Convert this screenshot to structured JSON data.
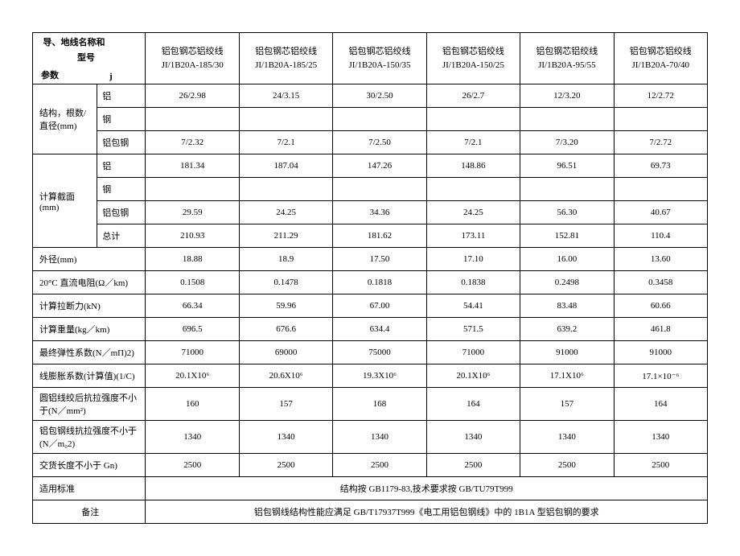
{
  "header": {
    "corner_top": "导、地线名称和",
    "corner_mid": "型号",
    "corner_bot": "参数",
    "corner_j": "j",
    "cols": [
      {
        "l1": "铝包钢芯铝绞线",
        "l2": "JI/1B20A-185/30"
      },
      {
        "l1": "铝包钢芯铝绞线",
        "l2": "JI/1B20A-185/25"
      },
      {
        "l1": "铝包钢芯铝绞线",
        "l2": "JI/1B20A-150/35"
      },
      {
        "l1": "铝包钢芯铝绞线",
        "l2": "JI/1B20A-150/25"
      },
      {
        "l1": "铝包钢芯铝绞线",
        "l2": "JI/1B20A-95/55"
      },
      {
        "l1": "铝包钢芯铝绞线",
        "l2": "JI/1B20A-70/40"
      }
    ]
  },
  "groups": {
    "g1": {
      "label": "结构，根数/直径(mm)",
      "rows": [
        {
          "sub": "铝",
          "v": [
            "26/2.98",
            "24/3.15",
            "30/2.50",
            "26/2.7",
            "12/3.20",
            "12/2.72"
          ]
        },
        {
          "sub": "钢",
          "v": [
            "",
            "",
            "",
            "",
            "",
            ""
          ]
        },
        {
          "sub": "铝包钢",
          "v": [
            "7/2.32",
            "7/2.1",
            "7/2.50",
            "7/2.1",
            "7/3.20",
            "7/2.72"
          ]
        }
      ]
    },
    "g2": {
      "label": "计算截面(mm)",
      "rows": [
        {
          "sub": "铝",
          "v": [
            "181.34",
            "187.04",
            "147.26",
            "148.86",
            "96.51",
            "69.73"
          ]
        },
        {
          "sub": "钢",
          "v": [
            "",
            "",
            "",
            "",
            "",
            ""
          ]
        },
        {
          "sub": "铝包钢",
          "v": [
            "29.59",
            "24.25",
            "34.36",
            "24.25",
            "56.30",
            "40.67"
          ]
        },
        {
          "sub": "总计",
          "v": [
            "210.93",
            "211.29",
            "181.62",
            "173.11",
            "152.81",
            "110.4"
          ]
        }
      ]
    }
  },
  "rows": [
    {
      "label": "外径(mm)",
      "v": [
        "18.88",
        "18.9",
        "17.50",
        "17.10",
        "16.00",
        "13.60"
      ]
    },
    {
      "label": "20°C 直流电阻(Ω／km)",
      "v": [
        "0.1508",
        "0.1478",
        "0.1818",
        "0.1838",
        "0.2498",
        "0.3458"
      ]
    },
    {
      "label": "计算拉断力(kN)",
      "v": [
        "66.34",
        "59.96",
        "67.00",
        "54.41",
        "83.48",
        "60.66"
      ]
    },
    {
      "label": "计算重量(kg／km)",
      "v": [
        "696.5",
        "676.6",
        "634.4",
        "571.5",
        "639.2",
        "461.8"
      ]
    },
    {
      "label": "最终弹性系数(N／mΠ)2)",
      "v": [
        "71000",
        "69000",
        "75000",
        "71000",
        "91000",
        "91000"
      ]
    },
    {
      "label": "线膨胀系数(计算值)(1/C)",
      "v": [
        "20.1X10⁶",
        "20.6X10⁶",
        "19.3X10⁶",
        "20.1X10⁶",
        "17.1X10⁶",
        "17.1×10⁻⁶"
      ]
    },
    {
      "label": "圆铝线绞后抗拉强度不小于(N／mm²)",
      "v": [
        "160",
        "157",
        "168",
        "164",
        "157",
        "164"
      ]
    },
    {
      "label": "铝包钢线抗拉强度不小于(N／m₀2)",
      "v": [
        "1340",
        "1340",
        "1340",
        "1340",
        "1340",
        "1340"
      ]
    },
    {
      "label": "交货长度不小于 Gn)",
      "v": [
        "2500",
        "2500",
        "2500",
        "2500",
        "2500",
        "2500"
      ]
    }
  ],
  "footer": {
    "std_label": "适用标准",
    "std_value": "结构按 GB1179-83,技术要求按 GB/TU79T999",
    "note_label": "备注",
    "note_value": "铝包钢线结构性能应满足 GB/T17937T999《电工用铝包钢线》中的 1B1A 型铝包钢的要求"
  }
}
